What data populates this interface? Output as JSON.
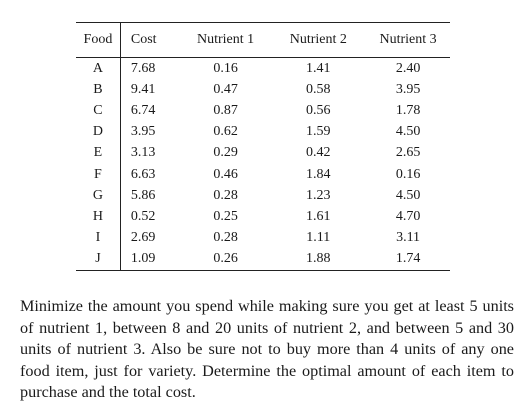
{
  "table": {
    "headers": [
      "Food",
      "Cost",
      "Nutrient 1",
      "Nutrient 2",
      "Nutrient 3"
    ],
    "rows": [
      [
        "A",
        "7.68",
        "0.16",
        "1.41",
        "2.40"
      ],
      [
        "B",
        "9.41",
        "0.47",
        "0.58",
        "3.95"
      ],
      [
        "C",
        "6.74",
        "0.87",
        "0.56",
        "1.78"
      ],
      [
        "D",
        "3.95",
        "0.62",
        "1.59",
        "4.50"
      ],
      [
        "E",
        "3.13",
        "0.29",
        "0.42",
        "2.65"
      ],
      [
        "F",
        "6.63",
        "0.46",
        "1.84",
        "0.16"
      ],
      [
        "G",
        "5.86",
        "0.28",
        "1.23",
        "4.50"
      ],
      [
        "H",
        "0.52",
        "0.25",
        "1.61",
        "4.70"
      ],
      [
        "I",
        "2.69",
        "0.28",
        "1.11",
        "3.11"
      ],
      [
        "J",
        "1.09",
        "0.26",
        "1.88",
        "1.74"
      ]
    ]
  },
  "problem_text": "Minimize the amount you spend while making sure you get at least 5 units of nutrient 1, between 8 and 20 units of nutrient 2, and between 5 and 30 units of nutrient 3. Also be sure not to buy more than 4 units of any one food item, just for variety. Determine the optimal amount of each item to purchase and the total cost."
}
